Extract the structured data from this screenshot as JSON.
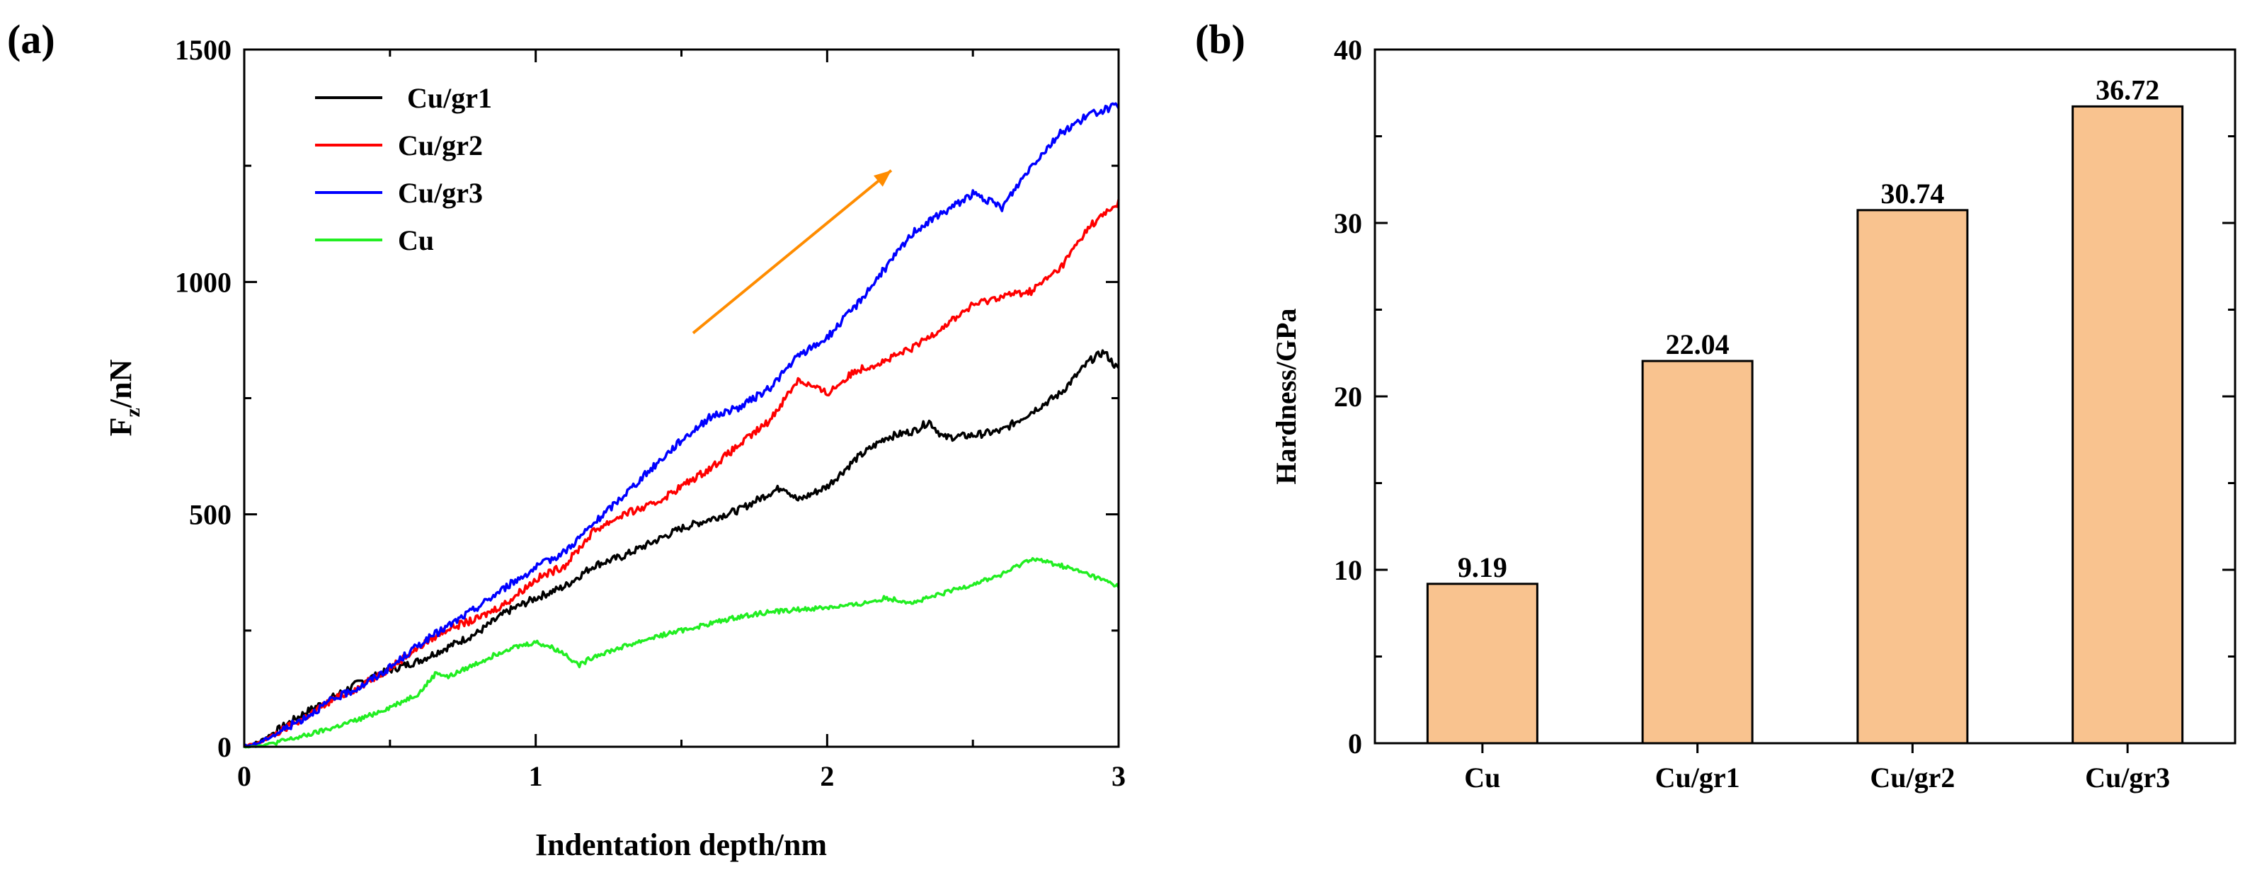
{
  "chart_data": [
    {
      "panel_label": "(a)",
      "type": "line",
      "title": "",
      "xlabel": "Indentation depth/nm",
      "ylabel_main": "F",
      "ylabel_sub": "z",
      "ylabel_tail": "/nN",
      "xlim": [
        0,
        3
      ],
      "ylim": [
        0,
        1500
      ],
      "xticks": [
        0,
        1,
        2,
        3
      ],
      "xtick_labels": [
        "0",
        "1",
        "2",
        "3"
      ],
      "yticks": [
        0,
        500,
        1000,
        1500
      ],
      "ytick_labels": [
        "0",
        "500",
        "1000",
        "1500"
      ],
      "legend_position": "top-left",
      "series": [
        {
          "name": "Cu/gr1",
          "color": "#000000",
          "x": [
            0,
            0.05,
            0.1,
            0.2,
            0.3,
            0.4,
            0.5,
            0.6,
            0.7,
            0.8,
            0.9,
            1.0,
            1.1,
            1.2,
            1.3,
            1.4,
            1.5,
            1.6,
            1.7,
            1.8,
            1.85,
            1.9,
            2.0,
            2.1,
            2.2,
            2.3,
            2.35,
            2.4,
            2.5,
            2.6,
            2.7,
            2.8,
            2.9,
            2.95,
            3.0
          ],
          "y": [
            0,
            10,
            30,
            70,
            105,
            140,
            165,
            185,
            215,
            245,
            290,
            320,
            345,
            390,
            410,
            440,
            470,
            490,
            510,
            545,
            560,
            530,
            560,
            620,
            665,
            680,
            700,
            665,
            670,
            680,
            720,
            760,
            830,
            850,
            810
          ]
        },
        {
          "name": "Cu/gr2",
          "color": "#ff0000",
          "x": [
            0,
            0.05,
            0.1,
            0.2,
            0.3,
            0.4,
            0.5,
            0.6,
            0.7,
            0.8,
            0.9,
            1.0,
            1.1,
            1.2,
            1.3,
            1.4,
            1.5,
            1.6,
            1.7,
            1.8,
            1.9,
            2.0,
            2.1,
            2.2,
            2.3,
            2.4,
            2.5,
            2.6,
            2.7,
            2.8,
            2.9,
            3.0
          ],
          "y": [
            0,
            8,
            25,
            60,
            100,
            130,
            170,
            215,
            255,
            275,
            310,
            360,
            390,
            465,
            500,
            520,
            560,
            600,
            650,
            700,
            790,
            760,
            810,
            830,
            860,
            905,
            950,
            970,
            980,
            1030,
            1120,
            1170
          ]
        },
        {
          "name": "Cu/gr3",
          "color": "#0000ff",
          "x": [
            0,
            0.05,
            0.1,
            0.2,
            0.3,
            0.4,
            0.5,
            0.6,
            0.7,
            0.8,
            0.9,
            1.0,
            1.1,
            1.2,
            1.3,
            1.4,
            1.5,
            1.6,
            1.7,
            1.8,
            1.9,
            2.0,
            2.1,
            2.2,
            2.3,
            2.4,
            2.5,
            2.6,
            2.7,
            2.8,
            2.9,
            3.0
          ],
          "y": [
            0,
            8,
            25,
            60,
            100,
            130,
            170,
            220,
            260,
            300,
            345,
            385,
            420,
            480,
            540,
            600,
            660,
            710,
            730,
            770,
            840,
            880,
            950,
            1030,
            1110,
            1150,
            1190,
            1160,
            1250,
            1320,
            1360,
            1380
          ]
        },
        {
          "name": "Cu",
          "color": "#22ee22",
          "x": [
            0,
            0.05,
            0.1,
            0.2,
            0.3,
            0.4,
            0.5,
            0.6,
            0.66,
            0.7,
            0.8,
            0.9,
            1.0,
            1.05,
            1.1,
            1.15,
            1.2,
            1.3,
            1.4,
            1.5,
            1.6,
            1.7,
            1.8,
            1.9,
            2.0,
            2.1,
            2.2,
            2.3,
            2.4,
            2.5,
            2.6,
            2.7,
            2.8,
            2.9,
            3.0
          ],
          "y": [
            0,
            2,
            8,
            22,
            40,
            60,
            85,
            115,
            160,
            150,
            180,
            210,
            225,
            215,
            200,
            175,
            195,
            215,
            235,
            250,
            265,
            280,
            290,
            295,
            300,
            305,
            320,
            310,
            330,
            350,
            370,
            405,
            390,
            370,
            345
          ]
        }
      ],
      "annotations": [
        {
          "type": "arrow",
          "color": "#ff8c00",
          "from": [
            1.54,
            890
          ],
          "to": [
            2.22,
            1240
          ]
        }
      ]
    },
    {
      "panel_label": "(b)",
      "type": "bar",
      "title": "",
      "xlabel": "",
      "ylabel": "Hardness/GPa",
      "categories": [
        "Cu",
        "Cu/gr1",
        "Cu/gr2",
        "Cu/gr3"
      ],
      "values": [
        9.19,
        22.04,
        30.74,
        36.72
      ],
      "value_labels": [
        "9.19",
        "22.04",
        "30.74",
        "36.72"
      ],
      "ylim": [
        0,
        40
      ],
      "yticks": [
        0,
        10,
        20,
        30,
        40
      ],
      "ytick_labels": [
        "0",
        "10",
        "20",
        "30",
        "40"
      ],
      "bar_color": "#f9c38f",
      "edge_color": "#000000"
    }
  ]
}
